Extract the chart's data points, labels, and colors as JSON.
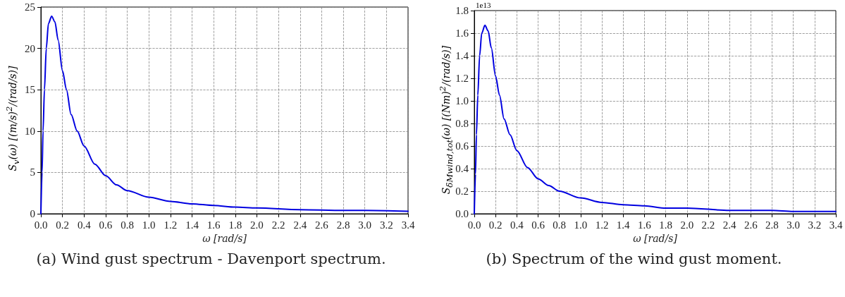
{
  "chart_data": [
    {
      "type": "line",
      "title": "(a) Wind gust spectrum - Davenport spectrum.",
      "xlabel": "ω [rad/s]",
      "ylabel": "S$_{v}$(ω) [(m/s)$^{2}$/(rad/s)]",
      "x": [
        0,
        0.011,
        0.02,
        0.033,
        0.05,
        0.07,
        0.1,
        0.13,
        0.16,
        0.2,
        0.237,
        0.28,
        0.336,
        0.4,
        0.5,
        0.6,
        0.7,
        0.8,
        1.0,
        1.2,
        1.4,
        1.6,
        1.8,
        2.0,
        2.4,
        2.8,
        3.0,
        3.4
      ],
      "series": [
        {
          "color": "#0000e0",
          "values": [
            0,
            5,
            10,
            15,
            20,
            23,
            23.9,
            23.2,
            21,
            17.3,
            15,
            12,
            10,
            8.2,
            6.0,
            4.6,
            3.5,
            2.8,
            2.0,
            1.5,
            1.2,
            1.0,
            0.8,
            0.7,
            0.5,
            0.4,
            0.4,
            0.3
          ]
        }
      ],
      "xlim": [
        0,
        3.4
      ],
      "ylim": [
        0,
        25
      ],
      "xticks": [
        {
          "value": 0,
          "label": "0.0"
        },
        {
          "value": 0.2,
          "label": "0.2"
        },
        {
          "value": 0.4,
          "label": "0.4"
        },
        {
          "value": 0.6,
          "label": "0.6"
        },
        {
          "value": 0.8,
          "label": "0.8"
        },
        {
          "value": 1,
          "label": "1.0"
        },
        {
          "value": 1.2,
          "label": "1.2"
        },
        {
          "value": 1.4,
          "label": "1.4"
        },
        {
          "value": 1.6,
          "label": "1.6"
        },
        {
          "value": 1.8,
          "label": "1.8"
        },
        {
          "value": 2,
          "label": "2.0"
        },
        {
          "value": 2.2,
          "label": "2.2"
        },
        {
          "value": 2.4,
          "label": "2.4"
        },
        {
          "value": 2.6,
          "label": "2.6"
        },
        {
          "value": 2.8,
          "label": "2.8"
        },
        {
          "value": 3,
          "label": "3.0"
        },
        {
          "value": 3.2,
          "label": "3.2"
        },
        {
          "value": 3.4,
          "label": "3.4"
        }
      ],
      "yticks": [
        0,
        5,
        10,
        15,
        20,
        25
      ],
      "grid": true,
      "marker": "none",
      "line_style": "solid"
    },
    {
      "type": "line",
      "title": "(b) Spectrum of the wind gust moment.",
      "xlabel": "ω [rad/s]",
      "ylabel": "S$_{δMwind,tot}$(ω) [(Nm)$^{2}$/(rad/s)]",
      "annotations": [
        "1e13"
      ],
      "x": [
        0,
        0.011,
        0.02,
        0.033,
        0.05,
        0.07,
        0.1,
        0.13,
        0.16,
        0.2,
        0.237,
        0.28,
        0.336,
        0.4,
        0.5,
        0.6,
        0.7,
        0.8,
        1.0,
        1.2,
        1.4,
        1.6,
        1.8,
        2.0,
        2.4,
        2.8,
        3.0,
        3.4
      ],
      "series": [
        {
          "color": "#0000e0",
          "values": [
            0,
            0.35,
            0.7,
            1.05,
            1.4,
            1.6,
            1.67,
            1.62,
            1.47,
            1.22,
            1.05,
            0.84,
            0.7,
            0.56,
            0.41,
            0.31,
            0.25,
            0.2,
            0.14,
            0.1,
            0.08,
            0.07,
            0.05,
            0.05,
            0.03,
            0.03,
            0.02,
            0.02
          ]
        }
      ],
      "xlim": [
        0,
        3.4
      ],
      "ylim": [
        0,
        1.8
      ],
      "xticks": [
        {
          "value": 0,
          "label": "0.0"
        },
        {
          "value": 0.2,
          "label": "0.2"
        },
        {
          "value": 0.4,
          "label": "0.4"
        },
        {
          "value": 0.6,
          "label": "0.6"
        },
        {
          "value": 0.8,
          "label": "0.8"
        },
        {
          "value": 1,
          "label": "1.0"
        },
        {
          "value": 1.2,
          "label": "1.2"
        },
        {
          "value": 1.4,
          "label": "1.4"
        },
        {
          "value": 1.6,
          "label": "1.6"
        },
        {
          "value": 1.8,
          "label": "1.8"
        },
        {
          "value": 2,
          "label": "2.0"
        },
        {
          "value": 2.2,
          "label": "2.2"
        },
        {
          "value": 2.4,
          "label": "2.4"
        },
        {
          "value": 2.6,
          "label": "2.6"
        },
        {
          "value": 2.8,
          "label": "2.8"
        },
        {
          "value": 3,
          "label": "3.0"
        },
        {
          "value": 3.2,
          "label": "3.2"
        },
        {
          "value": 3.4,
          "label": "3.4"
        }
      ],
      "yticks": [
        {
          "value": 0,
          "label": "0.0"
        },
        0.2,
        0.4,
        0.6,
        0.8,
        {
          "value": 1,
          "label": "1.0"
        },
        1.2,
        1.4,
        1.6,
        1.8
      ],
      "grid": true,
      "marker": "none",
      "line_style": "solid"
    }
  ]
}
